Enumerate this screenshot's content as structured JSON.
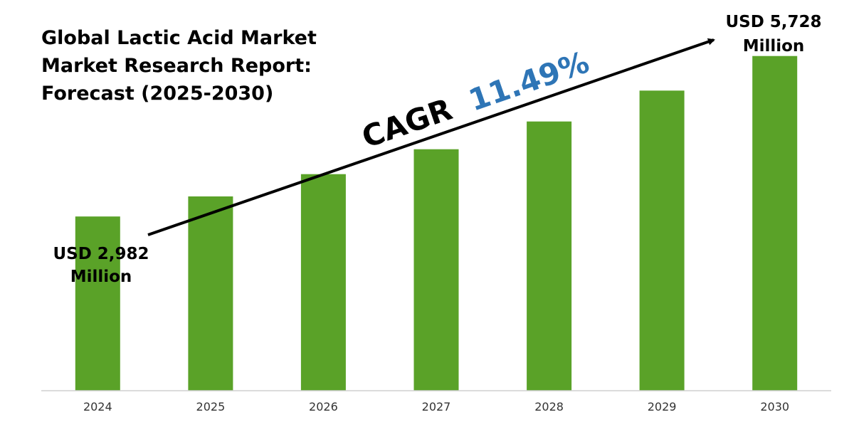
{
  "chart_data": {
    "type": "bar",
    "title": [
      "Global Lactic Acid Market",
      "Market Research Report:",
      "Forecast (2025-2030)"
    ],
    "categories": [
      "2024",
      "2025",
      "2026",
      "2027",
      "2028",
      "2029",
      "2030"
    ],
    "values": [
      2982,
      3325,
      3707,
      4133,
      4608,
      5137,
      5728
    ],
    "unit": "USD Million",
    "ylim": [
      0,
      6200
    ],
    "grid": false,
    "legend": "none",
    "bar_color": "#5aa228",
    "annotations": {
      "start_value": [
        "USD 2,982",
        "Million"
      ],
      "end_value": [
        "USD 5,728",
        "Million"
      ],
      "cagr_label": "CAGR",
      "cagr_value": "11.49%",
      "cagr_value_color": "#2e75b6",
      "arrow": "trend arrow from 2024 to 2030"
    }
  }
}
